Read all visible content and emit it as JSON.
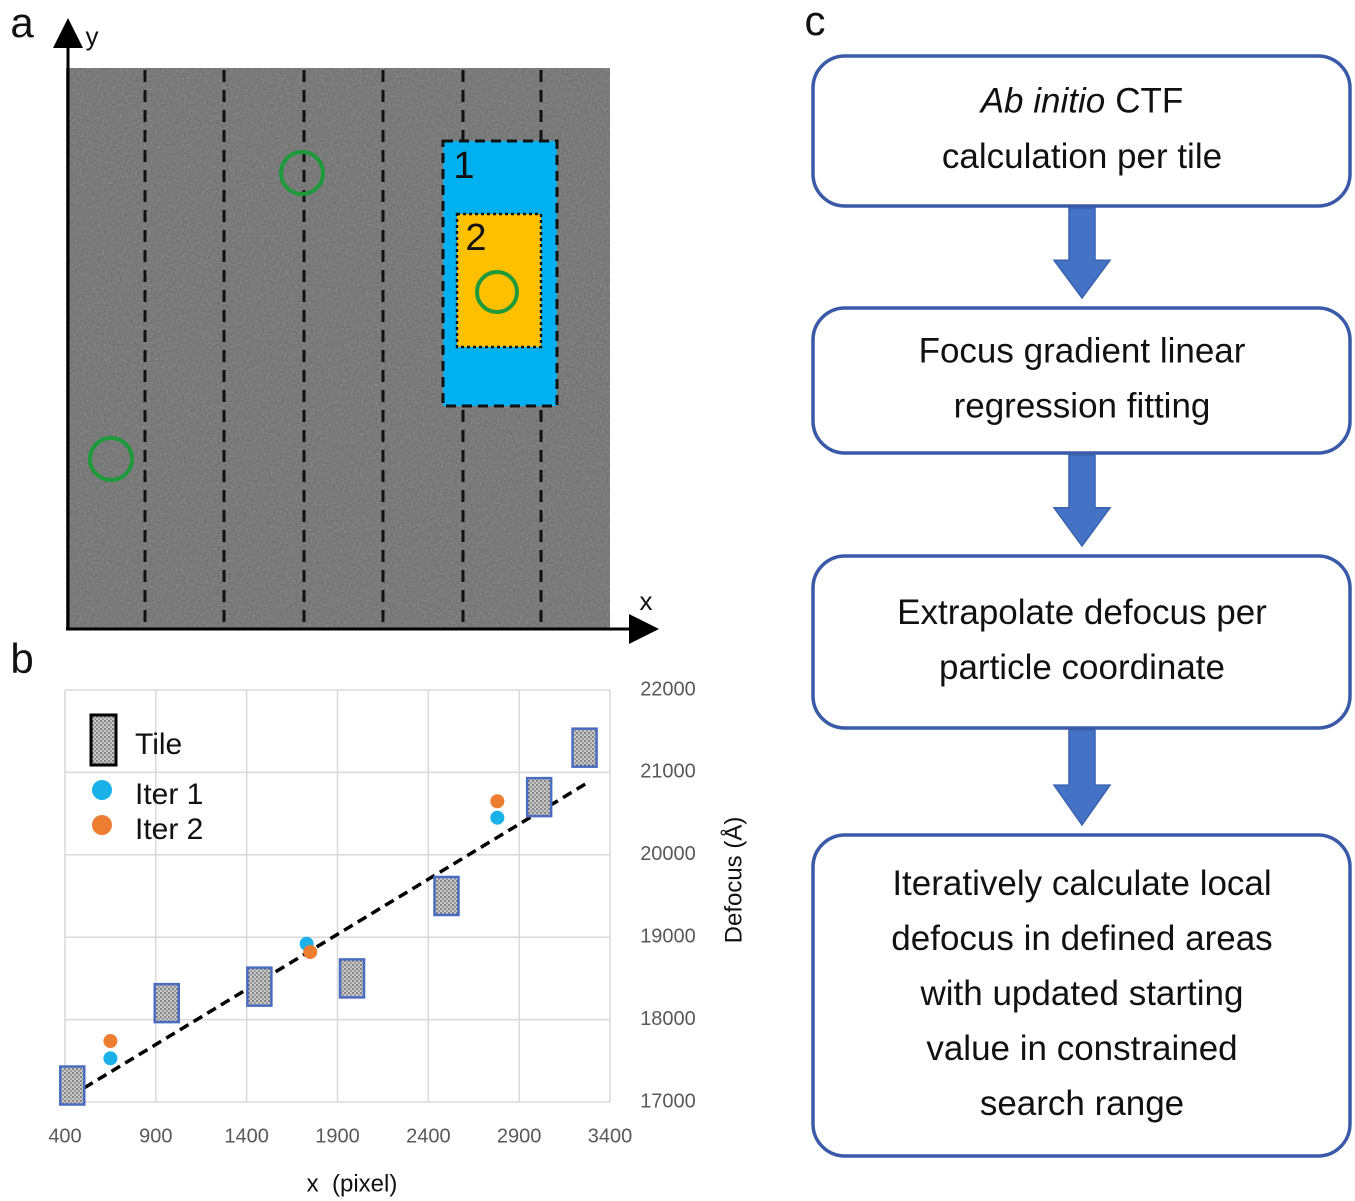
{
  "panels": [
    "a",
    "b",
    "c"
  ],
  "image_panel": {
    "y_axis_label": "y",
    "x_axis_label": "x",
    "region_labels": [
      "1",
      "2"
    ]
  },
  "chart_data": {
    "type": "scatter",
    "xlabel": "x  (pixel)",
    "ylabel": "Defocus (Å)",
    "y_axis_side": "right",
    "xlim": [
      400,
      3400
    ],
    "ylim": [
      17000,
      22000
    ],
    "xticks": [
      400,
      900,
      1400,
      1900,
      2400,
      2900,
      3400
    ],
    "yticks": [
      17000,
      18000,
      19000,
      20000,
      21000,
      22000
    ],
    "grid": true,
    "legend": "upper left",
    "series": [
      {
        "name": "Tile",
        "marker": "tile",
        "color": "#4a6cc0",
        "x": [
          440,
          960,
          1470,
          1980,
          2500,
          3010,
          3260
        ],
        "values": [
          17200,
          18200,
          18400,
          18500,
          19500,
          20700,
          21300
        ]
      },
      {
        "name": "Iter 1",
        "marker": "dot",
        "color": "#1ab0e8",
        "x": [
          650,
          1730,
          2780
        ],
        "values": [
          17530,
          18920,
          20450
        ]
      },
      {
        "name": "Iter 2",
        "marker": "dot",
        "color": "#ed7d31",
        "x": [
          650,
          1750,
          2780
        ],
        "values": [
          17740,
          18820,
          20650
        ]
      }
    ],
    "trendline": {
      "color": "#000000",
      "x": [
        430,
        3280
      ],
      "values": [
        17070,
        20880
      ]
    }
  },
  "flowchart": {
    "steps": [
      {
        "lines": [
          {
            "italic": "Ab initio",
            "text": "CTF"
          },
          "calculation per tile"
        ]
      },
      {
        "lines": [
          "Focus gradient linear",
          "regression fitting"
        ]
      },
      {
        "lines": [
          "Extrapolate defocus per",
          "particle coordinate"
        ]
      },
      {
        "lines": [
          "Iteratively calculate local",
          "defocus in defined areas",
          "with updated starting",
          "value in constrained",
          "search range"
        ]
      }
    ]
  }
}
